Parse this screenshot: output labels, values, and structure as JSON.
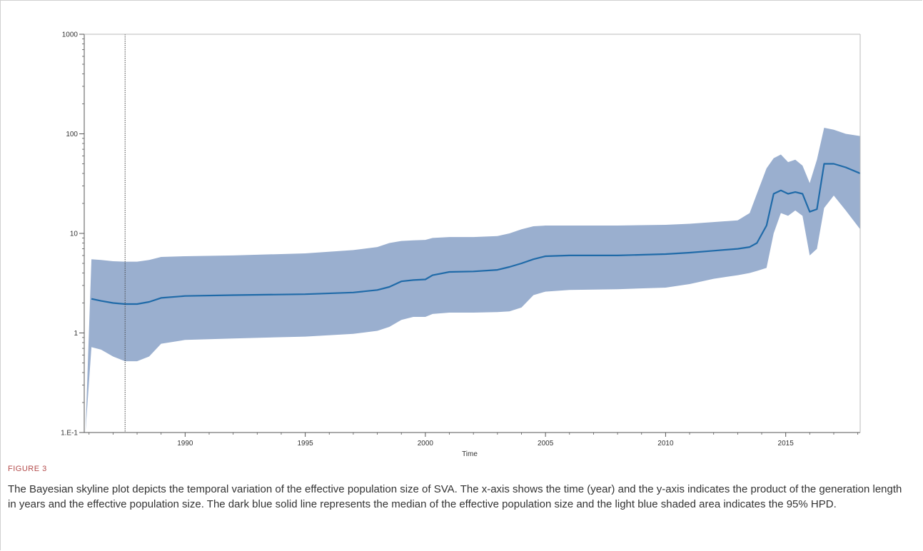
{
  "figure": {
    "label": "FIGURE 3",
    "caption": "The Bayesian skyline plot depicts the temporal variation of the effective population size of SVA. The x-axis shows the time (year) and the y-axis indicates the product of the generation length in years and the effective population size. The dark blue solid line represents the median of the effective population size and the light blue shaded area indicates the 95% HPD."
  },
  "chart_data": {
    "type": "area",
    "title": "",
    "xlabel": "Time",
    "ylabel": "",
    "xlim": [
      1985.8,
      2018.1
    ],
    "ylim": [
      0.1,
      1000
    ],
    "yscale": "log",
    "xticks": [
      1990,
      1995,
      2000,
      2005,
      2010,
      2015
    ],
    "xtick_labels": [
      "1990",
      "1995",
      "2000",
      "2005",
      "2010",
      "2015"
    ],
    "yticks": [
      0.1,
      1,
      10,
      100,
      1000
    ],
    "ytick_labels": [
      "1.E-1",
      "1",
      "10",
      "100",
      "1000"
    ],
    "grid": false,
    "vline_x": 1987.5,
    "colors": {
      "band": "#9aafcf",
      "median": "#1f6aa8",
      "axis": "#555555",
      "vline": "#444444"
    },
    "series": [
      {
        "x": [
          1986.1,
          1986.5,
          1987.0,
          1987.5,
          1988.0,
          1988.5,
          1989.0,
          1990,
          1992,
          1995,
          1997,
          1998,
          1998.5,
          1999,
          1999.5,
          2000,
          2000.3,
          2001,
          2002,
          2003,
          2003.5,
          2004,
          2004.5,
          2005,
          2006,
          2008,
          2010,
          2011,
          2012,
          2013,
          2013.5,
          2013.8,
          2014.2,
          2014.5,
          2014.8,
          2015.1,
          2015.4,
          2015.7,
          2016.0,
          2016.3,
          2016.6,
          2017.0,
          2017.5,
          2018.1
        ],
        "y": [
          2.2,
          2.1,
          2.0,
          1.95,
          1.95,
          2.05,
          2.25,
          2.35,
          2.4,
          2.45,
          2.55,
          2.7,
          2.9,
          3.3,
          3.4,
          3.45,
          3.8,
          4.1,
          4.15,
          4.3,
          4.6,
          5.0,
          5.5,
          5.9,
          6.0,
          6.0,
          6.2,
          6.4,
          6.7,
          7.0,
          7.3,
          8.0,
          12.0,
          25.0,
          27.0,
          25.0,
          26.0,
          25.0,
          16.5,
          17.5,
          50.0,
          50.0,
          46.0,
          40.0
        ]
      },
      {
        "name": "95% HPD upper",
        "x": [
          1986.1,
          1986.5,
          1987.0,
          1987.5,
          1988.0,
          1988.5,
          1989.0,
          1990,
          1992,
          1995,
          1997,
          1998,
          1998.5,
          1999,
          1999.5,
          2000,
          2000.3,
          2001,
          2002,
          2003,
          2003.5,
          2004,
          2004.5,
          2005,
          2006,
          2008,
          2010,
          2011,
          2012,
          2013,
          2013.5,
          2013.8,
          2014.2,
          2014.5,
          2014.8,
          2015.1,
          2015.4,
          2015.7,
          2016.0,
          2016.3,
          2016.6,
          2017.0,
          2017.5,
          2018.1
        ],
        "y": [
          5.5,
          5.4,
          5.25,
          5.2,
          5.2,
          5.4,
          5.8,
          5.9,
          6.0,
          6.3,
          6.8,
          7.3,
          8.0,
          8.4,
          8.5,
          8.6,
          9.0,
          9.2,
          9.2,
          9.4,
          10.0,
          11.0,
          11.8,
          12.0,
          12.0,
          12.0,
          12.2,
          12.5,
          13.0,
          13.5,
          16.0,
          25.0,
          45.0,
          57.0,
          62.0,
          52.0,
          55.0,
          48.0,
          32.0,
          55.0,
          115.0,
          110.0,
          100.0,
          95.0
        ]
      },
      {
        "name": "95% HPD lower",
        "x": [
          1985.85,
          1986.1,
          1986.5,
          1987.0,
          1987.5,
          1988.0,
          1988.5,
          1989.0,
          1990,
          1992,
          1995,
          1997,
          1998,
          1998.5,
          1999,
          1999.5,
          2000,
          2000.3,
          2001,
          2002,
          2003,
          2003.5,
          2004,
          2004.5,
          2005,
          2006,
          2008,
          2010,
          2011,
          2012,
          2013,
          2013.5,
          2013.8,
          2014.2,
          2014.5,
          2014.8,
          2015.1,
          2015.4,
          2015.7,
          2016.0,
          2016.3,
          2016.6,
          2017.0,
          2017.5,
          2018.1
        ],
        "y": [
          0.1,
          0.72,
          0.68,
          0.58,
          0.52,
          0.52,
          0.58,
          0.78,
          0.85,
          0.88,
          0.92,
          0.98,
          1.05,
          1.15,
          1.35,
          1.45,
          1.45,
          1.55,
          1.6,
          1.6,
          1.62,
          1.65,
          1.8,
          2.4,
          2.6,
          2.7,
          2.75,
          2.85,
          3.1,
          3.5,
          3.8,
          4.0,
          4.2,
          4.5,
          10.0,
          16.0,
          15.0,
          17.0,
          15.0,
          6.0,
          7.0,
          18.0,
          24.0,
          17.0,
          11.0
        ]
      }
    ]
  }
}
